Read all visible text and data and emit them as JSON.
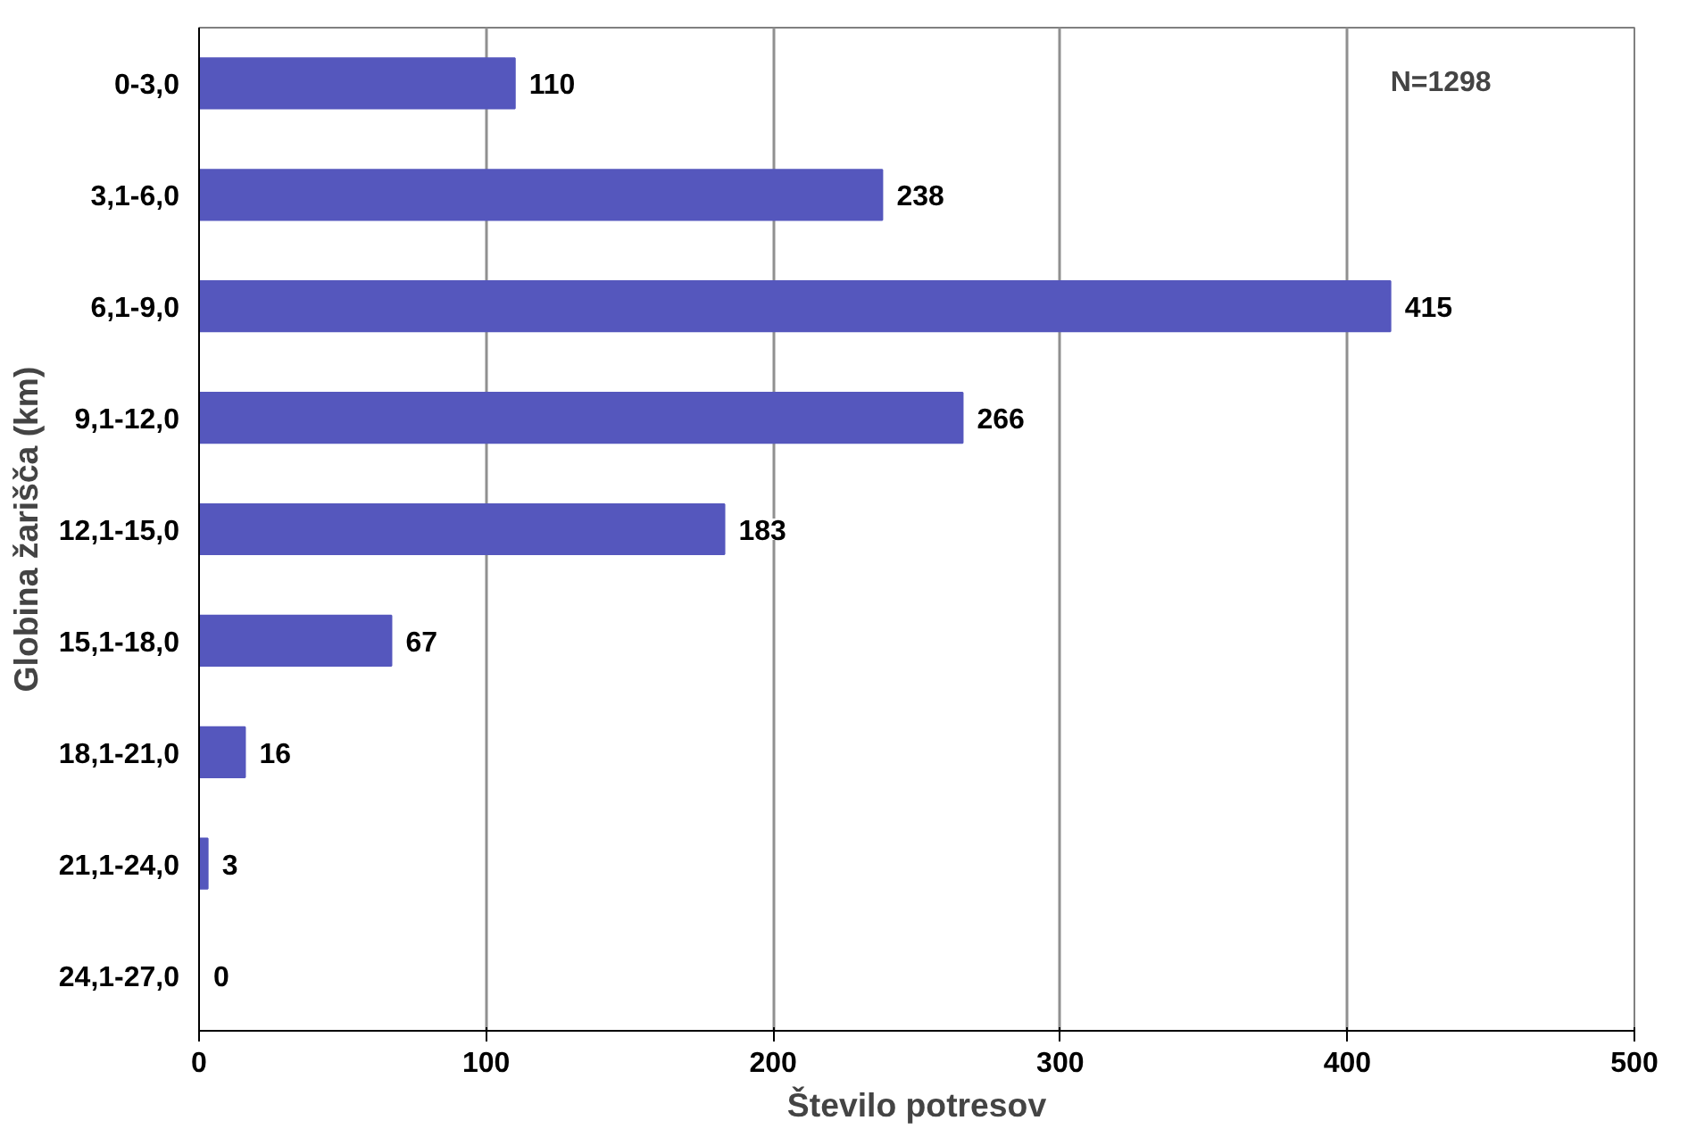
{
  "chart_data": {
    "type": "bar",
    "orientation": "horizontal",
    "xlabel": "Število potresov",
    "ylabel": "Globina žarišča (km)",
    "categories": [
      "0-3,0",
      "3,1-6,0",
      "6,1-9,0",
      "9,1-12,0",
      "12,1-15,0",
      "15,1-18,0",
      "18,1-21,0",
      "21,1-24,0",
      "24,1-27,0"
    ],
    "values": [
      110,
      238,
      415,
      266,
      183,
      67,
      16,
      3,
      0
    ],
    "color": "#5557bd",
    "xlim": [
      0,
      500
    ],
    "xticks": [
      0,
      100,
      200,
      300,
      400,
      500
    ],
    "grid": "x",
    "data_labels": true,
    "annotations": [
      "N=1298"
    ]
  }
}
